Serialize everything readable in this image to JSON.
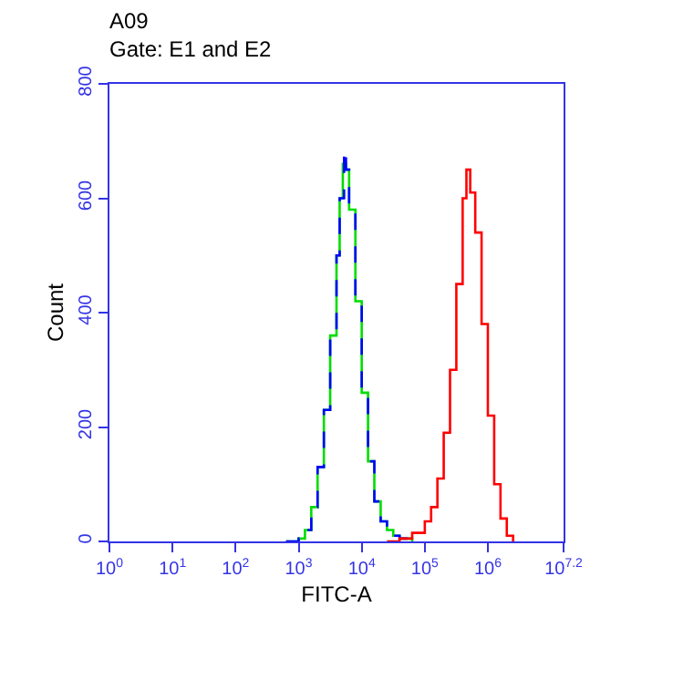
{
  "chart_data": {
    "type": "step",
    "title": "A09",
    "subtitle": "Gate: E1 and E2",
    "xlabel": "FITC-A",
    "ylabel": "Count",
    "log": "x",
    "marker": "none",
    "xlim": [
      1,
      15848932
    ],
    "ylim": [
      0,
      800
    ],
    "yticks": [
      0,
      200,
      400,
      600,
      800
    ],
    "xticks": [
      {
        "value": 1,
        "label": "10$^{0}$"
      },
      {
        "value": 10,
        "label": "10$^{1}$"
      },
      {
        "value": 100,
        "label": "10$^{2}$"
      },
      {
        "value": 1000,
        "label": "10$^{3}$"
      },
      {
        "value": 10000,
        "label": "10$^{4}$"
      },
      {
        "value": 100000,
        "label": "10$^{5}$"
      },
      {
        "value": 1000000,
        "label": "10$^{6}$"
      },
      {
        "value": 15848932,
        "label": "10$^{7.2}$"
      }
    ],
    "series": [
      {
        "color": "#00dd00",
        "line_style": "solid",
        "x": [
          631,
          1000,
          1259,
          1585,
          1995,
          2512,
          3162,
          3981,
          4467,
          5012,
          5623,
          6310,
          7943,
          10000,
          12589,
          15849,
          19953,
          25119,
          31623,
          39811,
          63096
        ],
        "values": [
          0,
          5,
          20,
          60,
          130,
          230,
          360,
          500,
          600,
          660,
          650,
          580,
          420,
          260,
          140,
          70,
          35,
          20,
          10,
          5,
          0
        ]
      },
      {
        "color": "#0000ff",
        "line_style": "dashed",
        "x": [
          631,
          1000,
          1259,
          1585,
          1995,
          2512,
          3162,
          3981,
          4467,
          5248,
          5623,
          6310,
          7943,
          10000,
          12589,
          15849,
          19953,
          25119,
          31623,
          39811,
          63096
        ],
        "values": [
          0,
          5,
          20,
          60,
          130,
          230,
          360,
          500,
          600,
          685,
          650,
          580,
          420,
          260,
          140,
          70,
          35,
          20,
          10,
          5,
          0
        ]
      },
      {
        "color": "#ff0000",
        "line_style": "solid",
        "x": [
          25119,
          39811,
          63096,
          100000,
          125893,
          158489,
          199526,
          251189,
          316228,
          398107,
          457088,
          524807,
          630957,
          794328,
          1000000,
          1258925,
          1584893,
          1995262,
          2511886
        ],
        "values": [
          0,
          5,
          15,
          35,
          60,
          110,
          190,
          300,
          450,
          600,
          650,
          610,
          540,
          380,
          220,
          100,
          40,
          10,
          0
        ]
      }
    ]
  }
}
